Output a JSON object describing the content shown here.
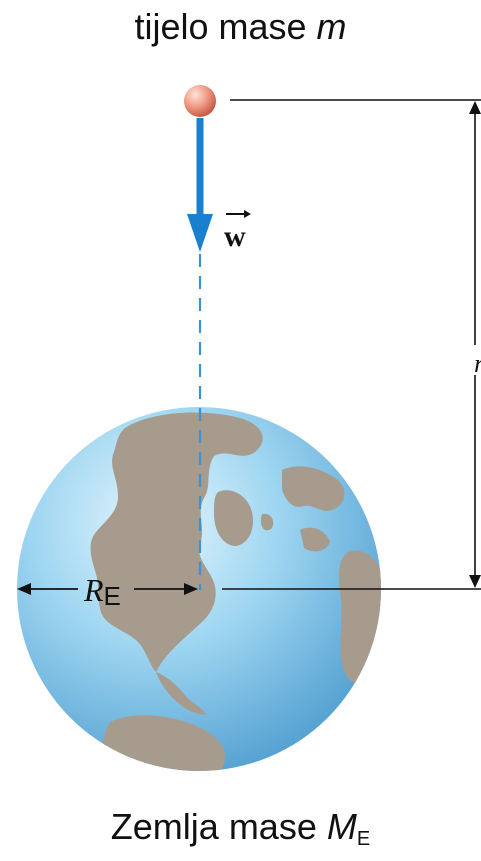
{
  "top_label": {
    "text": "tijelo mase ",
    "var": "m"
  },
  "bottom_label": {
    "text": "Zemlja mase ",
    "var": "M",
    "sub": "E"
  },
  "force_label": "w",
  "distance_label": "r",
  "radius_label": {
    "var": "R",
    "sub": "E"
  },
  "colors": {
    "ocean": "#8fd0ef",
    "ocean_dark": "#5fa9d6",
    "land": "#a69b8d",
    "arrow": "#1a7fcf",
    "ball": "#e88a78",
    "line": "#111111"
  }
}
